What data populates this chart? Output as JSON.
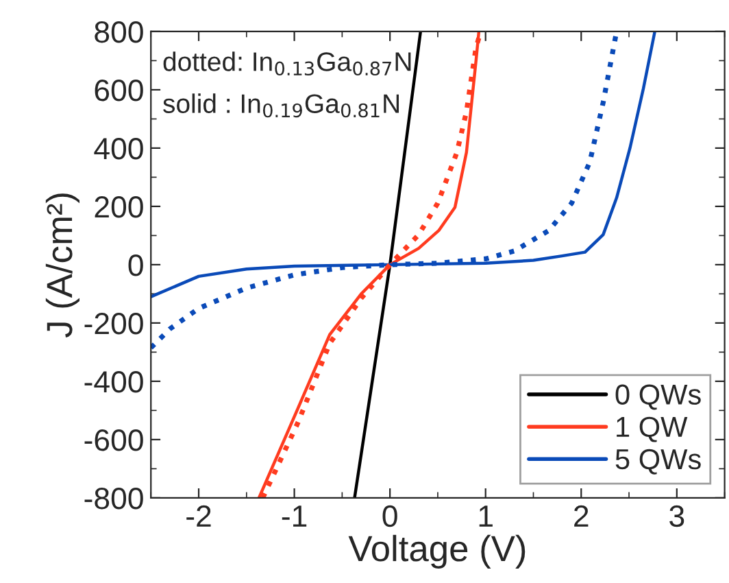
{
  "chart_data": {
    "type": "line",
    "xlabel": "Voltage (V)",
    "ylabel": "J (A/cm²)",
    "xlim": [
      -2.5,
      3.5
    ],
    "xticks": [
      -2,
      -1,
      0,
      1,
      2,
      3
    ],
    "ylim": [
      -800,
      800
    ],
    "yticks": [
      -800,
      -600,
      -400,
      -200,
      0,
      200,
      400,
      600,
      800
    ],
    "grid": false,
    "legend": "bottom right",
    "marker": "none",
    "annotations": [
      "dotted: In$_{0.13}$Ga$_{0.87}$N",
      "solid : In$_{0.19}$Ga$_{0.81}$N"
    ],
    "series": [
      {
        "name": "0 QWs",
        "color": "#000000",
        "line_style": "solid",
        "x": [
          -0.37,
          0,
          0.32
        ],
        "values": [
          -800,
          0,
          800
        ]
      },
      {
        "name": "1 QW",
        "color": "#ff3b1f",
        "line_style": "solid",
        "x": [
          -1.37,
          -0.96,
          -0.63,
          -0.3,
          0,
          0.3,
          0.51,
          0.68,
          0.8,
          0.9,
          0.93
        ],
        "values": [
          -800,
          -491,
          -240,
          -100,
          0,
          56,
          117,
          197,
          385,
          700,
          800
        ]
      },
      {
        "name": "5 QWs",
        "color": "#0a4ab8",
        "line_style": "solid",
        "x": [
          -2.5,
          -2,
          -1.5,
          -1,
          0,
          1,
          1.5,
          1.8,
          2.04,
          2.23,
          2.37,
          2.51,
          2.65,
          2.77
        ],
        "values": [
          -110,
          -40,
          -15,
          -5,
          0,
          5,
          15,
          30,
          43,
          103,
          229,
          400,
          604,
          800
        ]
      },
      {
        "color": "#ff3b1f",
        "line_style": "dotted",
        "x": [
          -1.33,
          -0.96,
          -0.63,
          -0.3,
          0,
          0.3,
          0.5,
          0.7,
          0.8,
          0.9,
          0.95
        ],
        "values": [
          -800,
          -540,
          -270,
          -115,
          0,
          103,
          211,
          385,
          525,
          745,
          800
        ]
      },
      {
        "color": "#0a4ab8",
        "line_style": "dotted",
        "x": [
          -2.5,
          -2.3,
          -2,
          -1.5,
          -1,
          -0.5,
          0,
          0.5,
          1,
          1.3,
          1.66,
          1.9,
          2.09,
          2.23,
          2.37
        ],
        "values": [
          -285,
          -220,
          -150,
          -80,
          -35,
          -10,
          0,
          5,
          20,
          47,
          117,
          211,
          352,
          557,
          800
        ]
      }
    ]
  }
}
